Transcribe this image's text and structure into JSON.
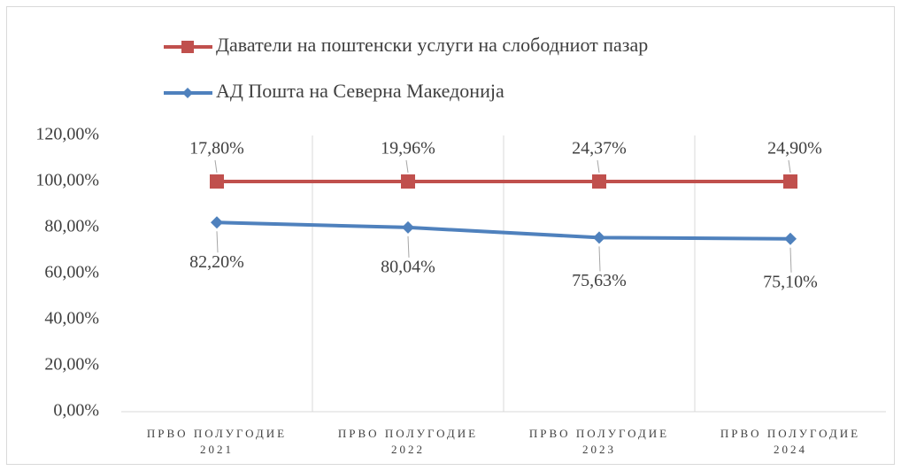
{
  "chart_data": {
    "type": "line",
    "stacked": true,
    "categories": [
      "ПРВО ПОЛУГОДИЕ 2021",
      "ПРВО ПОЛУГОДИЕ 2022",
      "ПРВО ПОЛУГОДИЕ 2023",
      "ПРВО ПОЛУГОДИЕ 2024"
    ],
    "series": [
      {
        "name": "Даватели на поштенски услуги на слободниот пазар",
        "color": "#c0504d",
        "marker": "square",
        "values": [
          17.8,
          19.96,
          24.37,
          24.9
        ],
        "value_labels": [
          "17,80%",
          "19,96%",
          "24,37%",
          "24,90%"
        ]
      },
      {
        "name": "АД Пошта на Северна Македонија",
        "color": "#4f81bd",
        "marker": "diamond",
        "values": [
          82.2,
          80.04,
          75.63,
          75.1
        ],
        "value_labels": [
          "82,20%",
          "80,04%",
          "75,63%",
          "75,10%"
        ]
      }
    ],
    "ylim": [
      0,
      120
    ],
    "yticks": [
      {
        "value": 0,
        "label": "0,00%"
      },
      {
        "value": 20,
        "label": "20,00%"
      },
      {
        "value": 40,
        "label": "40,00%"
      },
      {
        "value": 60,
        "label": "60,00%"
      },
      {
        "value": 80,
        "label": "80,00%"
      },
      {
        "value": 100,
        "label": "100,00%"
      },
      {
        "value": 120,
        "label": "120,00%"
      }
    ],
    "grid": "vertical",
    "legend": "top"
  }
}
